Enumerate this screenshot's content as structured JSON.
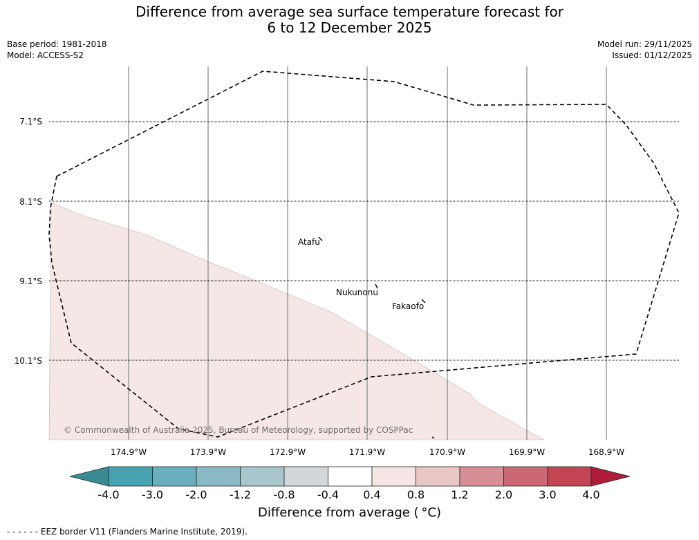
{
  "title": {
    "line1": "Difference from average sea surface temperature forecast for",
    "line2": "6 to 12 December 2025"
  },
  "meta": {
    "base_period": "Base period: 1981-2018",
    "model": "Model: ACCESS-S2",
    "model_run": "Model run: 29/11/2025",
    "issued": "Issued: 01/12/2025"
  },
  "map": {
    "lat_labels": [
      "7.1°S",
      "8.1°S",
      "9.1°S",
      "10.1°S"
    ],
    "lon_labels": [
      "174.9°W",
      "173.9°W",
      "172.9°W",
      "171.9°W",
      "170.9°W",
      "169.9°W",
      "168.9°W"
    ],
    "places": [
      {
        "name": "Atafu"
      },
      {
        "name": "Nukunonu"
      },
      {
        "name": "Fakaofo"
      }
    ],
    "copyright": "© Commonwealth of Australia 2025, Bureau of Meteorology, supported by COSPPac",
    "anomaly_region_value": "0.4 to 0.8",
    "colors": {
      "anomaly_fill": "#f4e7e6",
      "gridline": "#555555",
      "eez": "#000000"
    }
  },
  "colorbar": {
    "labels": [
      "-4.0",
      "-3.0",
      "-2.0",
      "-1.2",
      "-0.8",
      "-0.4",
      "0.4",
      "0.8",
      "1.2",
      "2.0",
      "3.0",
      "4.0"
    ],
    "colors": [
      "#3a8a93",
      "#48a3b1",
      "#6aafbd",
      "#8bb9c3",
      "#a8c7cd",
      "#d1d7da",
      "#ffffff",
      "#f5e6e5",
      "#e8c7c4",
      "#d78f96",
      "#cc6873",
      "#c24554",
      "#ad1d3a"
    ],
    "title": "Difference from average (",
    "title_unit": "°C)"
  },
  "footnote": "- -  - -  - - EEZ border V11 (Flanders Marine Institute, 2019)."
}
